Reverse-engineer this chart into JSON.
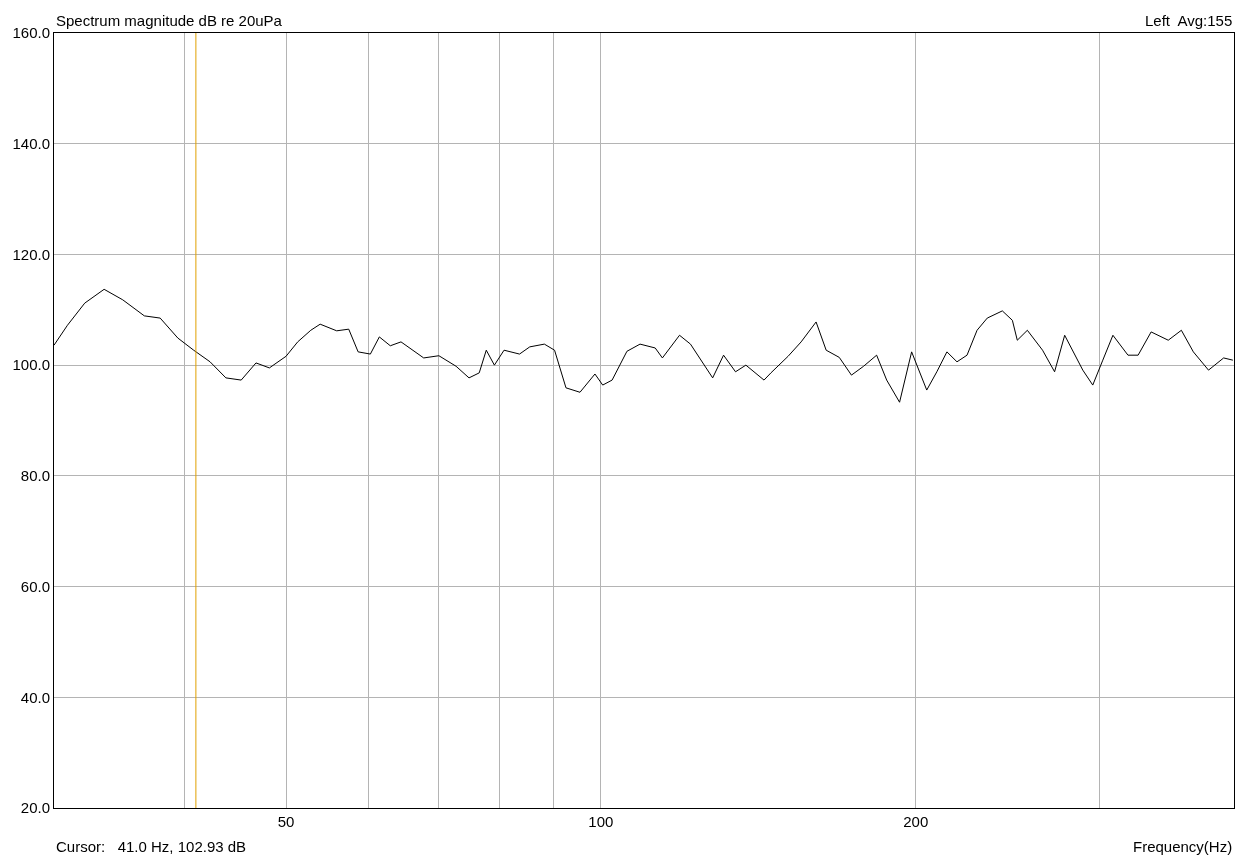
{
  "chart_data": {
    "type": "line",
    "title": "Spectrum magnitude dB re 20uPa",
    "xlabel": "Frequency(Hz)",
    "annotations": [
      "Left  Avg:155",
      "Cursor:   41.0 Hz, 102.93 dB"
    ],
    "log": "x",
    "grid": true,
    "marker": "none",
    "line_style": "solid",
    "xlim": [
      30,
      403
    ],
    "xticks": [
      {
        "value": 40,
        "label": null
      },
      {
        "value": 50,
        "label": "50"
      },
      {
        "value": 60,
        "label": null
      },
      {
        "value": 70,
        "label": null
      },
      {
        "value": 80,
        "label": null
      },
      {
        "value": 90,
        "label": null
      },
      {
        "value": 100,
        "label": "100"
      },
      {
        "value": 200,
        "label": "200"
      },
      {
        "value": 300,
        "label": null
      }
    ],
    "ylim": [
      20,
      160
    ],
    "yticks": [
      {
        "value": 20,
        "label": "20.0"
      },
      {
        "value": 40,
        "label": "40.0"
      },
      {
        "value": 60,
        "label": "60.0"
      },
      {
        "value": 80,
        "label": "80.0"
      },
      {
        "value": 100,
        "label": "100.0"
      },
      {
        "value": 120,
        "label": "120.0"
      },
      {
        "value": 140,
        "label": "140.0"
      },
      {
        "value": 160,
        "label": "160.0"
      }
    ],
    "ref_lines": [
      {
        "axis": "x",
        "value": 41,
        "color": "#e0a000"
      }
    ],
    "series": [
      {
        "color": "#000000",
        "x": [
          30,
          30.9,
          32.1,
          33.5,
          34.9,
          36.6,
          37.9,
          39.4,
          40.8,
          42.3,
          43.8,
          45.3,
          46.8,
          48.2,
          50,
          51.3,
          52.8,
          53.9,
          55.9,
          57.4,
          58.6,
          60.2,
          61.4,
          62.9,
          64.4,
          67.7,
          70,
          72.7,
          74.8,
          76.5,
          77.7,
          79.1,
          80.8,
          83.6,
          85.5,
          88.3,
          90.3,
          92.6,
          95.5,
          98.7,
          100.4,
          102.5,
          105.9,
          109,
          112.7,
          114.5,
          118.9,
          121.8,
          127.9,
          131,
          134.5,
          137.6,
          143.2,
          145.4,
          151,
          155.4,
          160.6,
          164.2,
          169,
          173.6,
          178.3,
          183.5,
          187.6,
          193,
          198.2,
          204.9,
          209.5,
          214.2,
          219,
          223.9,
          228.9,
          234.1,
          242,
          247.4,
          250.1,
          255.7,
          264.4,
          271.5,
          277.6,
          288.9,
          295.3,
          301.9,
          308.7,
          319.1,
          326.3,
          335.8,
          348.7,
          358.9,
          368.5,
          381,
          393.9,
          402
        ],
        "values": [
          103.6,
          107.2,
          111.2,
          113.7,
          111.8,
          108.9,
          108.5,
          104.9,
          102.7,
          100.6,
          97.7,
          97.3,
          100.4,
          99.5,
          101.6,
          104.2,
          106.3,
          107.4,
          106.2,
          106.5,
          102.4,
          102,
          105.1,
          103.5,
          104.2,
          101.3,
          101.7,
          99.8,
          97.7,
          98.6,
          102.7,
          100,
          102.7,
          102,
          103.3,
          103.8,
          102.7,
          95.9,
          95.1,
          98.4,
          96.4,
          97.3,
          102.5,
          103.8,
          103.1,
          101.3,
          105.4,
          103.8,
          97.7,
          101.8,
          98.8,
          100,
          97.3,
          98.6,
          101.6,
          104.2,
          107.8,
          102.7,
          101.4,
          98.2,
          99.8,
          101.8,
          97.3,
          93.3,
          102.4,
          95.5,
          98.8,
          102.4,
          100.6,
          101.8,
          106.3,
          108.5,
          109.8,
          108.1,
          104.5,
          106.3,
          102.7,
          98.8,
          105.4,
          99.1,
          96.4,
          100.9,
          105.4,
          101.8,
          101.8,
          106,
          104.5,
          106.3,
          102.4,
          99.1,
          101.3,
          100.9
        ]
      }
    ]
  }
}
